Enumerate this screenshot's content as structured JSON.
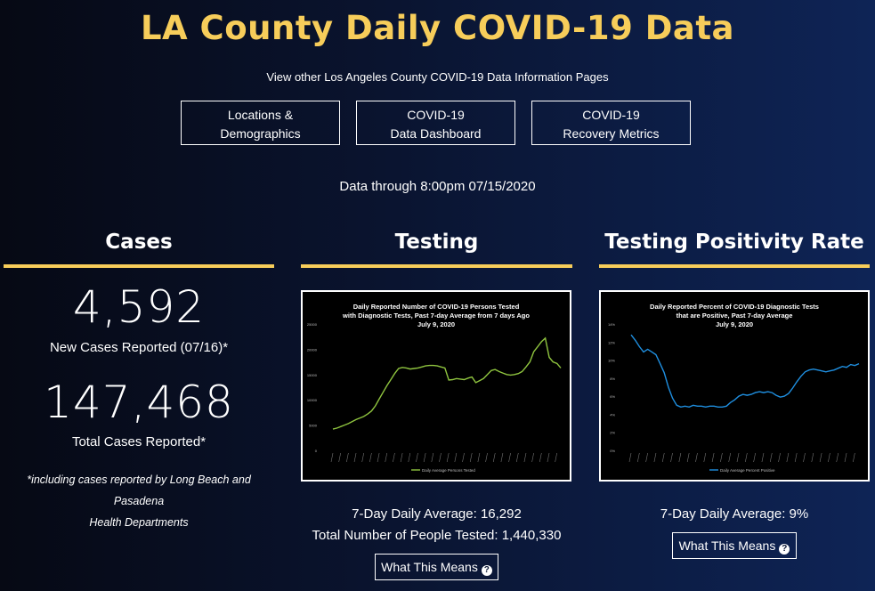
{
  "page": {
    "title": "LA County Daily COVID-19 Data",
    "subtitle": "View other Los Angeles County COVID-19 Data Information Pages",
    "data_through": "Data through 8:00pm 07/15/2020"
  },
  "nav_buttons": [
    {
      "line1": "Locations &",
      "line2": "Demographics"
    },
    {
      "line1": "COVID-19",
      "line2": "Data Dashboard"
    },
    {
      "line1": "COVID-19",
      "line2": "Recovery Metrics"
    }
  ],
  "cases": {
    "heading": "Cases",
    "new_cases_value": "4,592",
    "new_cases_label": "New Cases Reported (07/16)*",
    "total_cases_value": "147,468",
    "total_cases_label": "Total Cases Reported*",
    "footnote_line1": "*including cases reported by Long Beach and Pasadena",
    "footnote_line2": "Health Departments"
  },
  "testing": {
    "heading": "Testing",
    "avg_text": "7-Day Daily Average: 16,292",
    "total_text": "Total Number of People Tested: 1,440,330",
    "button_label": "What This Means"
  },
  "positivity": {
    "heading": "Testing Positivity Rate",
    "avg_text": "7-Day Daily Average: 9%",
    "button_label": "What This Means"
  },
  "accent_color": "#f7cd5a",
  "chart_data": [
    {
      "type": "line",
      "title_lines": [
        "Daily Reported Number of COVID-19 Persons Tested",
        "with Diagnostic Tests, Past 7-day Average from 7 days Ago",
        "July 9, 2020"
      ],
      "y_ticks": [
        "25000",
        "20000",
        "15000",
        "10000",
        "5000",
        "0"
      ],
      "ylim": [
        0,
        25000
      ],
      "series": [
        {
          "name": "Daily Average Persons Tested",
          "color": "#8fc43f",
          "values": [
            4200,
            4400,
            4700,
            5000,
            5300,
            5700,
            6100,
            6400,
            6700,
            7200,
            7800,
            8800,
            10200,
            11500,
            12800,
            14000,
            15200,
            16200,
            16400,
            16300,
            16100,
            16200,
            16300,
            16500,
            16700,
            16800,
            16800,
            16700,
            16500,
            16300,
            13900,
            14000,
            14200,
            14100,
            14000,
            14300,
            14500,
            13400,
            13800,
            14200,
            15000,
            15800,
            16000,
            15600,
            15300,
            15000,
            14900,
            15000,
            15200,
            15600,
            16500,
            17500,
            19500,
            20500,
            21500,
            22200,
            18400,
            17500,
            17200,
            16300
          ]
        }
      ]
    },
    {
      "type": "line",
      "title_lines": [
        "Daily Reported Percent of COVID-19 Diagnostic Tests",
        "that are Positive, Past 7-day Average",
        "July 9, 2020"
      ],
      "y_ticks": [
        "14%",
        "12%",
        "10%",
        "8%",
        "6%",
        "4%",
        "2%",
        "0%"
      ],
      "ylim": [
        0,
        14
      ],
      "series": [
        {
          "name": "Daily Average Percent Positive",
          "color": "#1f8fe0",
          "values": [
            12.8,
            12.2,
            11.5,
            10.9,
            11.2,
            10.9,
            10.6,
            9.6,
            8.6,
            7.0,
            5.8,
            5.0,
            4.8,
            4.9,
            4.8,
            5.0,
            4.9,
            4.9,
            4.8,
            4.9,
            4.9,
            4.8,
            4.8,
            4.9,
            5.3,
            5.6,
            6.0,
            6.2,
            6.1,
            6.2,
            6.4,
            6.5,
            6.4,
            6.5,
            6.4,
            6.1,
            5.9,
            6.0,
            6.3,
            6.9,
            7.6,
            8.2,
            8.7,
            8.9,
            9.0,
            8.9,
            8.8,
            8.7,
            8.8,
            8.9,
            9.1,
            9.3,
            9.2,
            9.5,
            9.4,
            9.6
          ]
        }
      ]
    }
  ]
}
